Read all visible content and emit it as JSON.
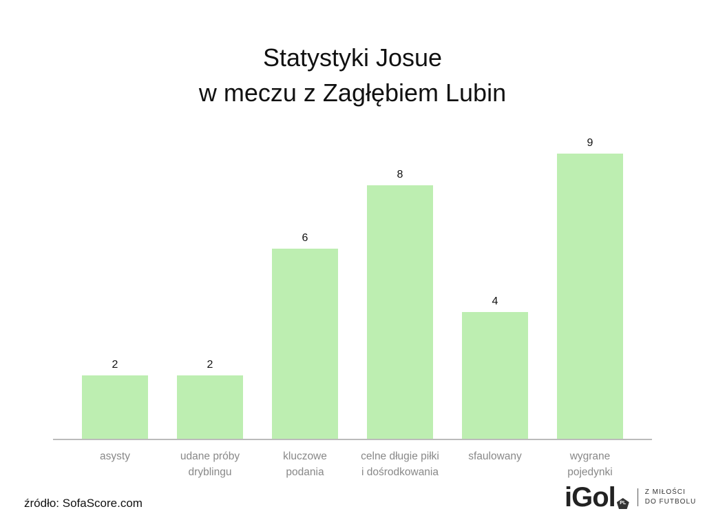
{
  "chart_data": {
    "type": "bar",
    "title_lines": [
      "Statystyki Josue",
      "w meczu z Zagłębiem Lubin"
    ],
    "categories": [
      [
        "asysty"
      ],
      [
        "udane próby",
        "dryblingu"
      ],
      [
        "kluczowe",
        "podania"
      ],
      [
        "celne długie piłki",
        "i dośrodkowania"
      ],
      [
        "sfaulowany"
      ],
      [
        "wygrane",
        "pojedynki"
      ]
    ],
    "values": [
      2,
      2,
      6,
      8,
      4,
      9
    ],
    "ylim": [
      0,
      9
    ],
    "grid": false,
    "xlabel": "",
    "ylabel": "",
    "bar_color": "#bdeeb1",
    "axis_color": "#bbbbbb",
    "label_color": "#888888"
  },
  "source": "źródło: SofaScore.com",
  "logo": {
    "word": "iGol",
    "badge": "PL",
    "tagline": [
      "Z MIŁOŚCI",
      "DO FUTBOLU"
    ]
  }
}
